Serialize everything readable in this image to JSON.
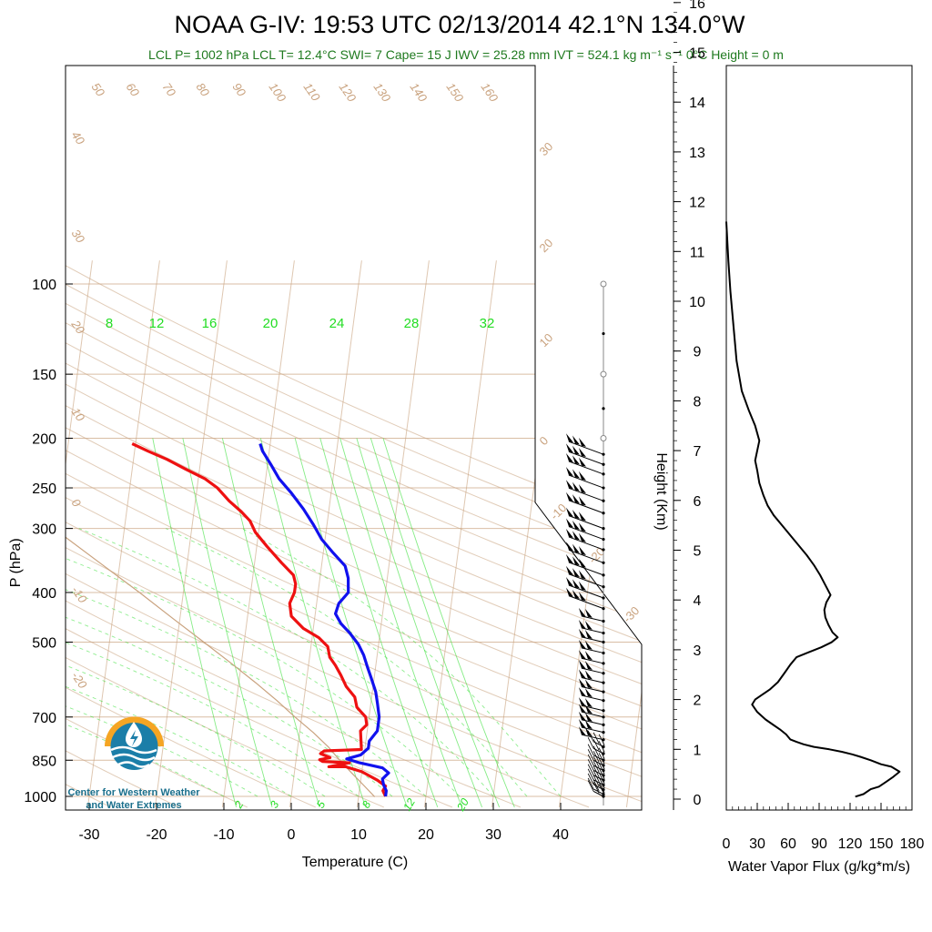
{
  "title": "NOAA G-IV: 19:53 UTC 02/13/2014  42.1°N 134.0°W",
  "subtitle": "LCL P= 1002 hPa  LCL T= 12.4°C  SWI= 7  Cape= 15 J  IWV = 25.28 mm  IVT = 524.1 kg m⁻¹ s⁻¹  0°C Height = 0 m",
  "logo": {
    "line1": "Center for Western Weather",
    "line2": "and Water Extremes",
    "icon": "cw3e-logo"
  },
  "colors": {
    "temperature": "#ee1111",
    "dewpoint": "#1111ee",
    "dry_adiabat": "#c9a27e",
    "isotherm": "#c9a27e",
    "mixing_ratio": "#22dd22",
    "parcel": "#c9a27e",
    "flux": "#000000"
  },
  "chart_data": [
    {
      "type": "line",
      "subtype": "skew-t log-p",
      "xlabel": "Temperature (C)",
      "ylabel": "P (hPa)",
      "xticks": [
        -30,
        -20,
        -10,
        0,
        10,
        20,
        30,
        40
      ],
      "yticks": [
        100,
        150,
        200,
        250,
        300,
        400,
        500,
        700,
        850,
        1000
      ],
      "ylog": true,
      "ylim": [
        1000,
        100
      ],
      "mixing_ratio_labels_upper": [
        "8",
        "12",
        "16",
        "20",
        "24",
        "28",
        "32"
      ],
      "mixing_ratio_labels_lower": [
        "2",
        "3",
        "5",
        "8",
        "12",
        "20"
      ],
      "theta_labels_top": [
        "50",
        "60",
        "70",
        "80",
        "90",
        "100",
        "110",
        "120",
        "130",
        "140",
        "150",
        "160"
      ],
      "theta_labels_left": [
        "40",
        "30",
        "20",
        "10",
        "0",
        "-10",
        "-20"
      ],
      "isotherm_labels_right": [
        "30",
        "20",
        "10",
        "0",
        "-10",
        "-20",
        "-30"
      ],
      "series": [
        {
          "name": "temperature",
          "values": [
            [
              14,
              1000
            ],
            [
              13.5,
              975
            ],
            [
              13.8,
              955
            ],
            [
              12.5,
              930
            ],
            [
              10,
              895
            ],
            [
              7.5,
              875
            ],
            [
              5,
              875
            ],
            [
              8,
              860
            ],
            [
              4,
              855
            ],
            [
              3.5,
              848
            ],
            [
              5,
              840
            ],
            [
              3.5,
              825
            ],
            [
              4,
              815
            ],
            [
              9.5,
              810
            ],
            [
              9.2,
              770
            ],
            [
              9,
              745
            ],
            [
              9.8,
              725
            ],
            [
              9.5,
              700
            ],
            [
              8,
              670
            ],
            [
              7.5,
              640
            ],
            [
              6,
              610
            ],
            [
              5,
              580
            ],
            [
              4,
              555
            ],
            [
              3,
              535
            ],
            [
              2.5,
              510
            ],
            [
              1,
              490
            ],
            [
              -1.5,
              470
            ],
            [
              -3.5,
              445
            ],
            [
              -4,
              420
            ],
            [
              -3.5,
              400
            ],
            [
              -3.5,
              385
            ],
            [
              -4,
              370
            ],
            [
              -6,
              350
            ],
            [
              -8.5,
              325
            ],
            [
              -10.5,
              305
            ],
            [
              -11.5,
              290
            ],
            [
              -13,
              278
            ],
            [
              -15,
              265
            ],
            [
              -17,
              250
            ],
            [
              -19,
              240
            ],
            [
              -22,
              230
            ],
            [
              -25,
              220
            ],
            [
              -28,
              212
            ],
            [
              -30.5,
              205
            ]
          ]
        },
        {
          "name": "dewpoint",
          "values": [
            [
              14,
              1000
            ],
            [
              14,
              975
            ],
            [
              13.5,
              950
            ],
            [
              13.2,
              925
            ],
            [
              14,
              900
            ],
            [
              13,
              880
            ],
            [
              9.5,
              860
            ],
            [
              7.5,
              845
            ],
            [
              9.5,
              830
            ],
            [
              10.5,
              805
            ],
            [
              10.5,
              780
            ],
            [
              11.5,
              745
            ],
            [
              11.5,
              700
            ],
            [
              11,
              660
            ],
            [
              10.5,
              625
            ],
            [
              9.5,
              585
            ],
            [
              8.8,
              560
            ],
            [
              8,
              530
            ],
            [
              7,
              505
            ],
            [
              5.5,
              480
            ],
            [
              4,
              460
            ],
            [
              3,
              440
            ],
            [
              3.3,
              420
            ],
            [
              4.5,
              400
            ],
            [
              4.2,
              375
            ],
            [
              3.5,
              355
            ],
            [
              1.5,
              335
            ],
            [
              -0.5,
              315
            ],
            [
              -2,
              295
            ],
            [
              -3.8,
              275
            ],
            [
              -6,
              255
            ],
            [
              -8,
              240
            ],
            [
              -9.5,
              225
            ],
            [
              -11,
              212
            ],
            [
              -11.5,
              205
            ]
          ]
        },
        {
          "name": "parcel",
          "values": [
            [
              12.4,
              1002
            ],
            [
              10.5,
              950
            ],
            [
              8.5,
              900
            ],
            [
              6.5,
              850
            ],
            [
              4.5,
              800
            ],
            [
              2,
              750
            ],
            [
              -1,
              700
            ],
            [
              -4,
              650
            ],
            [
              -7.5,
              600
            ],
            [
              -11.5,
              550
            ],
            [
              -16,
              500
            ],
            [
              -21,
              450
            ],
            [
              -26.5,
              400
            ],
            [
              -33,
              350
            ],
            [
              -40.5,
              300
            ],
            [
              -50,
              250
            ],
            [
              -62,
              200
            ],
            [
              -75,
              160
            ],
            [
              -88,
              130
            ],
            [
              -105,
              100
            ]
          ]
        }
      ]
    },
    {
      "type": "line",
      "subtype": "wind barbs",
      "levels_hpa": [
        100,
        125,
        150,
        175,
        200,
        215,
        225,
        235,
        250,
        265,
        280,
        300,
        315,
        330,
        350,
        370,
        390,
        410,
        430,
        455,
        480,
        500,
        525,
        550,
        575,
        600,
        625,
        650,
        680,
        700,
        725,
        750,
        775,
        800,
        825,
        850,
        870,
        890,
        910,
        930,
        950,
        970,
        990,
        1000
      ],
      "barbs_drawn_from_hpa": 215
    },
    {
      "type": "line",
      "xlabel": "Water Vapor Flux (g/kg*m/s)",
      "ylabel": "Height (Km)",
      "xlim": [
        0,
        180
      ],
      "ylim": [
        0,
        16
      ],
      "xticks": [
        0,
        30,
        60,
        90,
        120,
        150,
        180
      ],
      "yticks": [
        0,
        1,
        2,
        3,
        4,
        5,
        6,
        7,
        8,
        9,
        10,
        11,
        12,
        13,
        14,
        15,
        16
      ],
      "series": [
        {
          "name": "water vapor flux",
          "values": [
            [
              125,
              0.05
            ],
            [
              133,
              0.1
            ],
            [
              140,
              0.2
            ],
            [
              148,
              0.25
            ],
            [
              155,
              0.35
            ],
            [
              162,
              0.45
            ],
            [
              168,
              0.55
            ],
            [
              160,
              0.65
            ],
            [
              150,
              0.7
            ],
            [
              140,
              0.78
            ],
            [
              130,
              0.85
            ],
            [
              122,
              0.9
            ],
            [
              112,
              0.95
            ],
            [
              100,
              1.0
            ],
            [
              85,
              1.05
            ],
            [
              75,
              1.1
            ],
            [
              68,
              1.15
            ],
            [
              62,
              1.2
            ],
            [
              58,
              1.3
            ],
            [
              52,
              1.4
            ],
            [
              45,
              1.5
            ],
            [
              38,
              1.6
            ],
            [
              30,
              1.75
            ],
            [
              25,
              1.9
            ],
            [
              28,
              2.0
            ],
            [
              35,
              2.1
            ],
            [
              42,
              2.2
            ],
            [
              50,
              2.35
            ],
            [
              57,
              2.55
            ],
            [
              62,
              2.7
            ],
            [
              68,
              2.85
            ],
            [
              80,
              2.95
            ],
            [
              92,
              3.05
            ],
            [
              102,
              3.15
            ],
            [
              108,
              3.25
            ],
            [
              103,
              3.35
            ],
            [
              99,
              3.5
            ],
            [
              96,
              3.65
            ],
            [
              95,
              3.8
            ],
            [
              97,
              3.95
            ],
            [
              101,
              4.1
            ],
            [
              96,
              4.3
            ],
            [
              91,
              4.5
            ],
            [
              85,
              4.7
            ],
            [
              78,
              4.9
            ],
            [
              70,
              5.1
            ],
            [
              62,
              5.3
            ],
            [
              54,
              5.5
            ],
            [
              46,
              5.7
            ],
            [
              40,
              5.9
            ],
            [
              36,
              6.1
            ],
            [
              32,
              6.35
            ],
            [
              30,
              6.6
            ],
            [
              28,
              6.8
            ],
            [
              30,
              7.0
            ],
            [
              32,
              7.2
            ],
            [
              28,
              7.5
            ],
            [
              22,
              7.8
            ],
            [
              15,
              8.2
            ],
            [
              10,
              8.8
            ],
            [
              7,
              9.5
            ],
            [
              4,
              10.2
            ],
            [
              2,
              10.8
            ],
            [
              0,
              11.6
            ]
          ]
        }
      ]
    }
  ]
}
